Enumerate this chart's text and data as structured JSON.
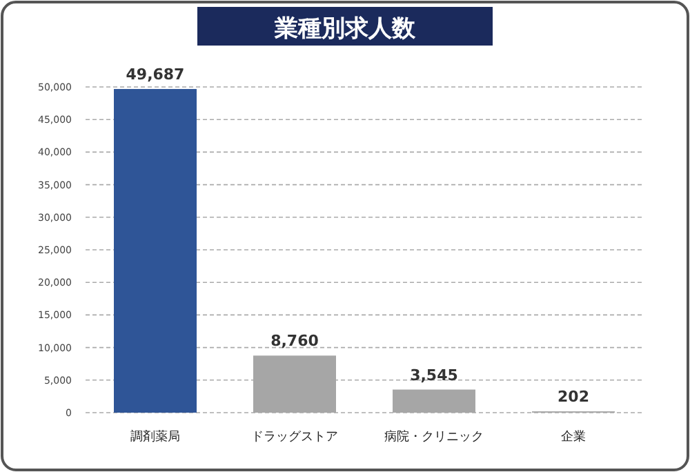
{
  "chart_data": {
    "type": "bar",
    "title": "業種別求人数",
    "categories": [
      "調剤薬局",
      "ドラッグストア",
      "病院・クリニック",
      "企業"
    ],
    "values": [
      49687,
      8760,
      3545,
      202
    ],
    "colors": [
      "#2f5597",
      "#a6a6a6",
      "#a6a6a6",
      "#a6a6a6"
    ],
    "value_labels": [
      "49,687",
      "8,760",
      "3,545",
      "202"
    ],
    "ylim": [
      0,
      50000
    ],
    "yticks": [
      0,
      {
        "value": 5000,
        "label": "5,000"
      },
      {
        "value": 10000,
        "label": "10,000"
      },
      {
        "value": 15000,
        "label": "15,000"
      },
      {
        "value": 20000,
        "label": "20,000"
      },
      {
        "value": 25000,
        "label": "25,000"
      },
      {
        "value": 30000,
        "label": "30,000"
      },
      {
        "value": 35000,
        "label": "35,000"
      },
      {
        "value": 40000,
        "label": "40,000"
      },
      {
        "value": 45000,
        "label": "45,000"
      },
      {
        "value": 50000,
        "label": "50,000"
      }
    ],
    "grid": "y",
    "line_style": "dashed"
  }
}
